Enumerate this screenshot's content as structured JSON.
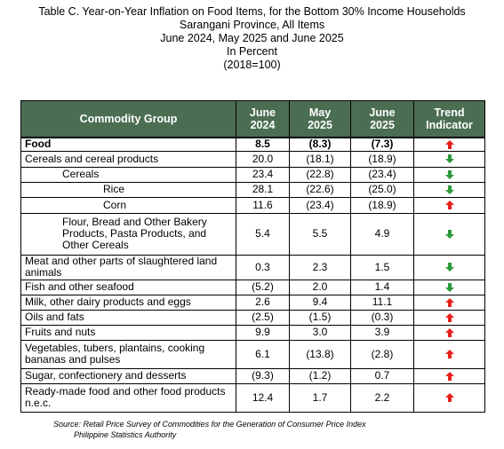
{
  "header": {
    "title": "Table C. Year-on-Year Inflation on Food Items, for the Bottom 30% Income Households",
    "subtitle": "Sarangani Province, All Items",
    "period": "June 2024, May 2025 and June 2025",
    "unit": "In Percent",
    "base": "(2018=100)"
  },
  "table": {
    "columns": [
      "Commodity Group",
      "June 2024",
      "May 2025",
      "June 2025",
      "Trend Indicator"
    ],
    "rows": [
      [
        "Food",
        "8.5",
        "(8.3)",
        "(7.3)"
      ],
      [
        "Cereals and cereal products",
        "20.0",
        "(18.1)",
        "(18.9)"
      ],
      [
        "Cereals",
        "23.4",
        "(22.8)",
        "(23.4)"
      ],
      [
        "Rice",
        "28.1",
        "(22.6)",
        "(25.0)"
      ],
      [
        "Corn",
        "11.6",
        "(23.4)",
        "(18.9)"
      ],
      [
        "Flour, Bread and Other Bakery Products, Pasta Products, and Other Cereals",
        "5.4",
        "5.5",
        "4.9"
      ],
      [
        "Meat and other parts of slaughtered land animals",
        "0.3",
        "2.3",
        "1.5"
      ],
      [
        "Fish and other seafood",
        "(5.2)",
        "2.0",
        "1.4"
      ],
      [
        "Milk, other dairy products and eggs",
        "2.6",
        "9.4",
        "11.1"
      ],
      [
        "Oils and fats",
        "(2.5)",
        "(1.5)",
        "(0.3)"
      ],
      [
        "Fruits and nuts",
        "9.9",
        "3.0",
        "3.9"
      ],
      [
        "Vegetables, tubers, plantains, cooking bananas and pulses",
        "6.1",
        "(13.8)",
        "(2.8)"
      ],
      [
        "Sugar, confectionery and desserts",
        "(9.3)",
        "(1.2)",
        "0.7"
      ],
      [
        "Ready-made food and other food products n.e.c.",
        "12.4",
        "1.7",
        "2.2"
      ]
    ]
  },
  "footer": {
    "source": "Source: Retail Price Survey of Commodities for the Generation of Consumer Price Index",
    "agency": "Philippine Statistics Authority"
  }
}
